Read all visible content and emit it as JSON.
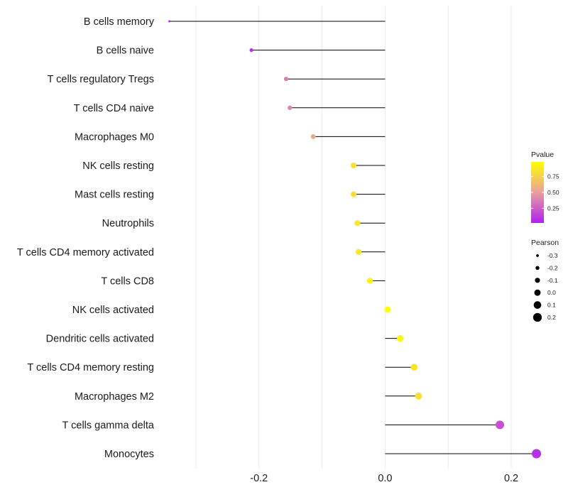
{
  "chart_data": {
    "type": "lollipop",
    "title": "",
    "xlabel": "",
    "ylabel": "",
    "xlim": [
      -0.345,
      0.245
    ],
    "xticks": [
      -0.2,
      0.0,
      0.2
    ],
    "xtick_labels": [
      "-0.2",
      "0.0",
      "0.2"
    ],
    "grid": true,
    "categories": [
      "B cells memory",
      "B cells naive",
      "T cells regulatory  Tregs",
      "T cells CD4 naive",
      "Macrophages M0",
      "NK cells resting",
      "Mast cells resting",
      "Neutrophils",
      "T cells CD4 memory activated",
      "T cells CD8",
      "NK cells activated",
      "Dendritic cells activated",
      "T cells CD4 memory resting",
      "Macrophages M2",
      "T cells gamma delta",
      "Monocytes"
    ],
    "pearson": [
      -0.342,
      -0.212,
      -0.157,
      -0.151,
      -0.114,
      -0.05,
      -0.05,
      -0.044,
      -0.042,
      -0.024,
      0.004,
      0.024,
      0.046,
      0.053,
      0.182,
      0.24
    ],
    "pvalue": [
      0.02,
      0.1,
      0.37,
      0.4,
      0.55,
      0.82,
      0.82,
      0.85,
      0.86,
      0.92,
      0.98,
      0.93,
      0.85,
      0.83,
      0.2,
      0.08
    ],
    "legend_pvalue": {
      "title": "Pvalue",
      "ticks": [
        "0.75",
        "0.50",
        "0.25"
      ],
      "tick_values": [
        0.75,
        0.5,
        0.25
      ],
      "range": [
        0.02,
        0.98
      ],
      "color_high": "#ffff00",
      "color_mid": "#e8a0a0",
      "color_low": "#b020ee"
    },
    "legend_pearson": {
      "title": "Pearson",
      "labels": [
        "-0.3",
        "-0.2",
        "-0.1",
        "0.0",
        "0.1",
        "0.2"
      ],
      "values": [
        -0.3,
        -0.2,
        -0.1,
        0.0,
        0.1,
        0.2
      ]
    }
  }
}
